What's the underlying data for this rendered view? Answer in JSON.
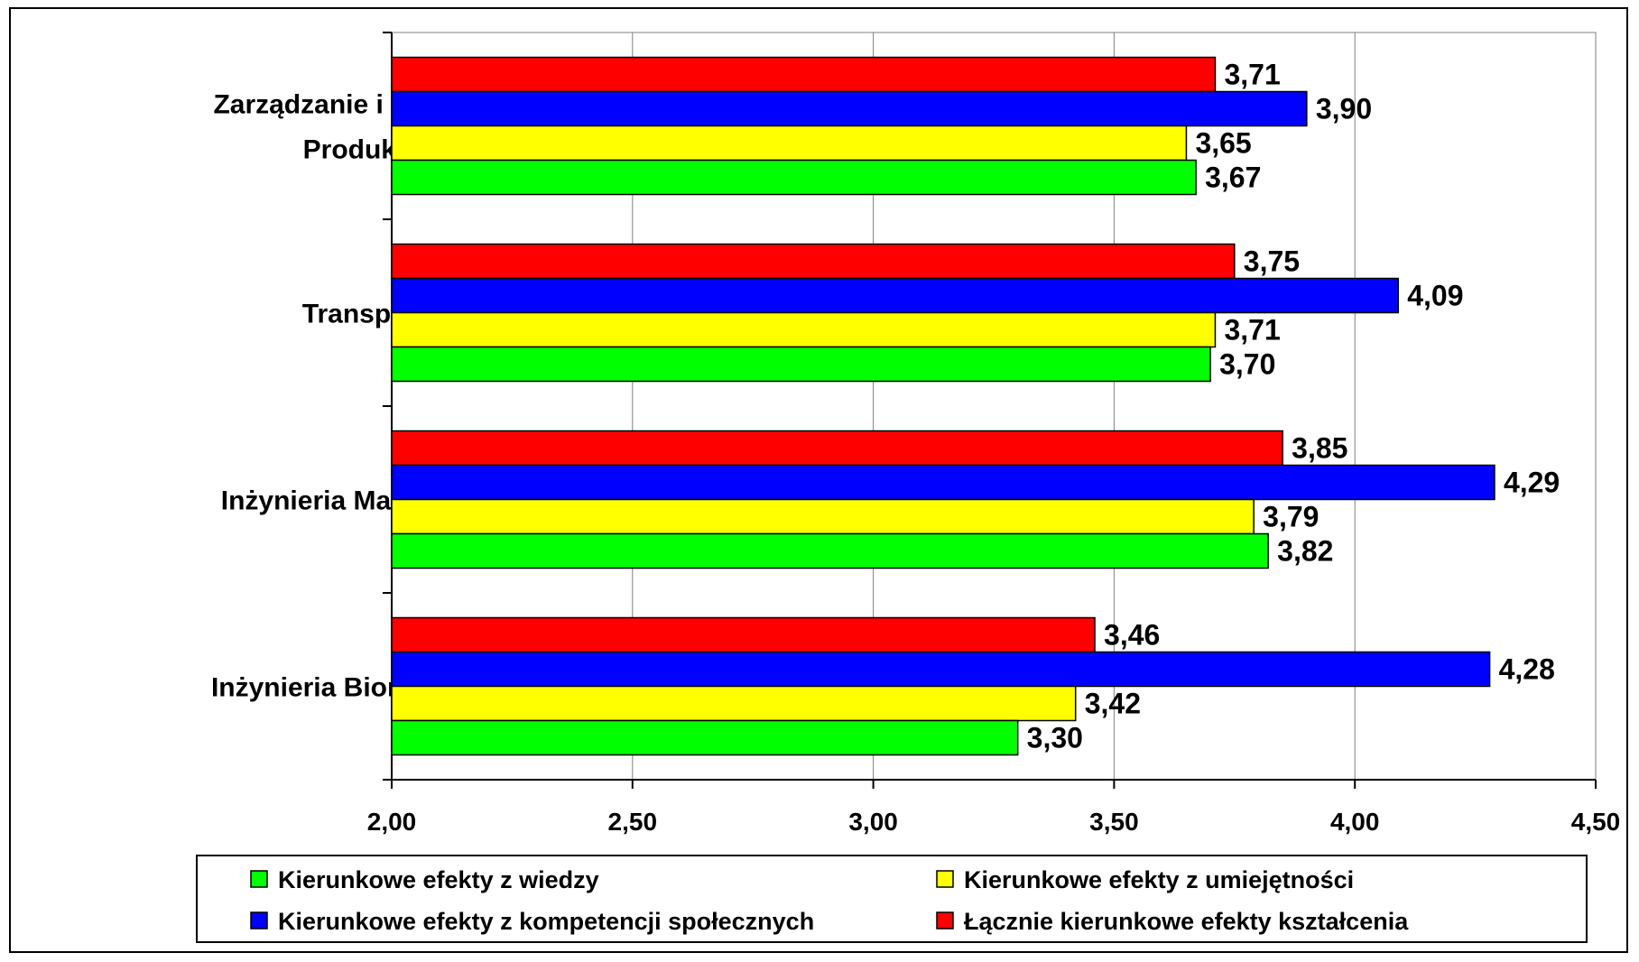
{
  "chart_data": {
    "type": "bar",
    "orientation": "horizontal",
    "categories": [
      [
        "Zarządzanie i Inżynieria",
        "Produkcji"
      ],
      [
        "Transport"
      ],
      [
        "Inżynieria Materiałowa"
      ],
      [
        "Inżynieria Biomedyczna"
      ]
    ],
    "series": [
      {
        "name": "Łącznie kierunkowe efekty kształcenia",
        "color": "#FF0000",
        "values": [
          3.71,
          3.75,
          3.85,
          3.46
        ],
        "labels": [
          "3,71",
          "3,75",
          "3,85",
          "3,46"
        ]
      },
      {
        "name": "Kierunkowe efekty z kompetencji społecznych",
        "color": "#0000FF",
        "values": [
          3.9,
          4.09,
          4.29,
          4.28
        ],
        "labels": [
          "3,90",
          "4,09",
          "4,29",
          "4,28"
        ]
      },
      {
        "name": "Kierunkowe efekty z umiejętności",
        "color": "#FFFF00",
        "values": [
          3.65,
          3.71,
          3.79,
          3.42
        ],
        "labels": [
          "3,65",
          "3,71",
          "3,79",
          "3,42"
        ]
      },
      {
        "name": "Kierunkowe efekty z wiedzy",
        "color": "#00FF00",
        "values": [
          3.67,
          3.7,
          3.82,
          3.3
        ],
        "labels": [
          "3,67",
          "3,70",
          "3,82",
          "3,30"
        ]
      }
    ],
    "xlim": [
      2.0,
      4.5
    ],
    "xticks": [
      2.0,
      2.5,
      3.0,
      3.5,
      4.0,
      4.5
    ],
    "xtick_labels": [
      "2,00",
      "2,50",
      "3,00",
      "3,50",
      "4,00",
      "4,50"
    ],
    "grid": "vertical",
    "legend": {
      "placement": "bottom",
      "entries": [
        {
          "name": "Kierunkowe efekty z wiedzy",
          "color": "#00FF00"
        },
        {
          "name": "Kierunkowe efekty z umiejętności",
          "color": "#FFFF00"
        },
        {
          "name": "Kierunkowe efekty z kompetencji społecznych",
          "color": "#0000FF"
        },
        {
          "name": "Łącznie kierunkowe efekty kształcenia",
          "color": "#FF0000"
        }
      ]
    }
  }
}
